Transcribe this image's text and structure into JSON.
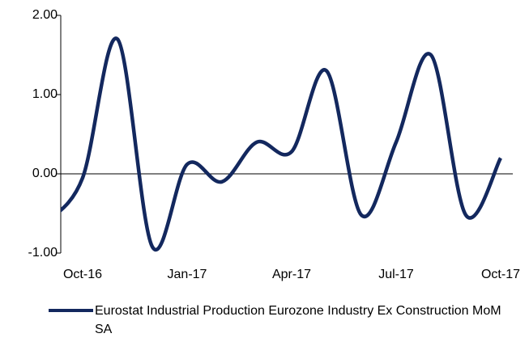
{
  "chart_data": {
    "type": "line",
    "categories": [
      null,
      "Oct-16",
      null,
      null,
      "Jan-17",
      null,
      null,
      "Apr-17",
      null,
      null,
      "Jul-17",
      null,
      null,
      "Oct-17"
    ],
    "series": [
      {
        "name": "Eurostat Industrial Production Eurozone Industry Ex Construction MoM SA",
        "color": "#13285e",
        "values": [
          -0.6,
          -0.05,
          1.7,
          -0.92,
          0.12,
          -0.1,
          0.4,
          0.28,
          1.3,
          -0.52,
          0.4,
          1.5,
          -0.52,
          0.2
        ]
      }
    ],
    "ylim": [
      -1,
      2
    ],
    "yticks": [
      {
        "value": -1,
        "label": "-1.00"
      },
      {
        "value": 0,
        "label": "0.00"
      },
      {
        "value": 1,
        "label": "1.00"
      },
      {
        "value": 2,
        "label": "2.00"
      }
    ],
    "smooth": true
  }
}
